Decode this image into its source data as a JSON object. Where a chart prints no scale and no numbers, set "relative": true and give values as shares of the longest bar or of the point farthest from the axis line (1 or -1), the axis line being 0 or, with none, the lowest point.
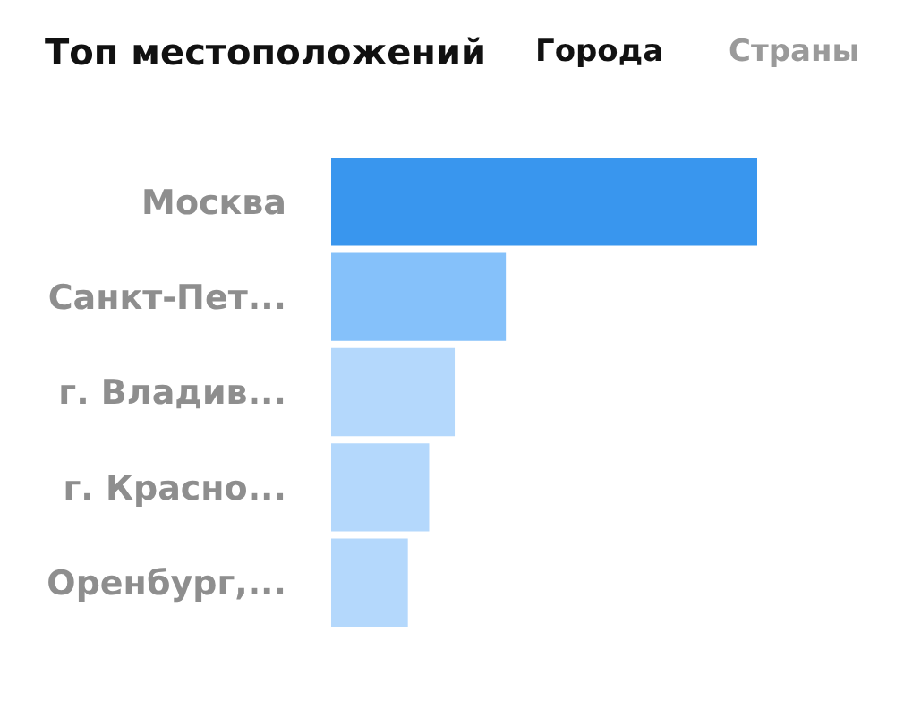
{
  "chart_data": {
    "type": "bar",
    "orientation": "horizontal",
    "relative": true,
    "title": "Топ местоположений",
    "annotations": [
      "Города",
      "Страны"
    ],
    "categories": [
      "Москва",
      "Санкт-Пет...",
      "г. Владив...",
      "г. Красно...",
      "Оренбург,..."
    ],
    "values": [
      1,
      0.41,
      0.29,
      0.23,
      0.18
    ],
    "colors": [
      "#3996ee",
      "#85c1fa",
      "#b4d8fc",
      "#b4d8fc",
      "#b4d8fc"
    ]
  }
}
